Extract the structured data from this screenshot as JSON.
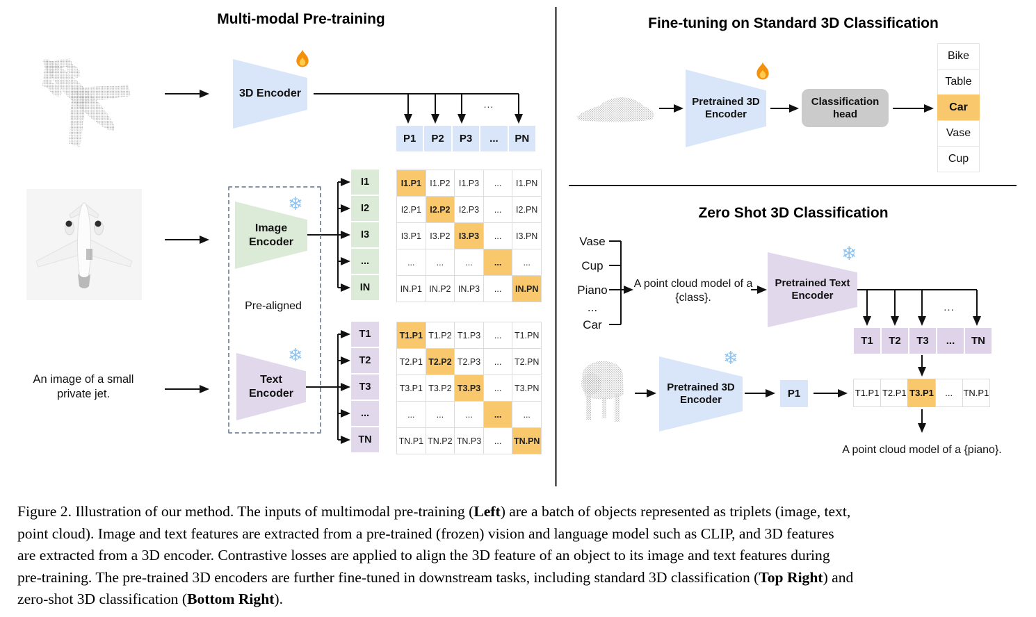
{
  "figure": {
    "ellipsis": "...",
    "left": {
      "title": "Multi-modal Pre-training",
      "encoder_3d_label": "3D Encoder",
      "image_encoder_label": "Image Encoder",
      "text_encoder_label": "Text Encoder",
      "pre_aligned_label": "Pre-aligned",
      "text_input": "An image of a small private jet.",
      "p_row": [
        "P1",
        "P2",
        "P3",
        "...",
        "PN"
      ],
      "i_labels": [
        "I1",
        "I2",
        "I3",
        "...",
        "IN"
      ],
      "i_matrix": [
        [
          "I1.P1",
          "I1.P2",
          "I1.P3",
          "...",
          "I1.PN"
        ],
        [
          "I2.P1",
          "I2.P2",
          "I2.P3",
          "...",
          "I2.PN"
        ],
        [
          "I3.P1",
          "I3.P2",
          "I3.P3",
          "...",
          "I3.PN"
        ],
        [
          "...",
          "...",
          "...",
          "...",
          "..."
        ],
        [
          "IN.P1",
          "IN.P2",
          "IN.P3",
          "...",
          "IN.PN"
        ]
      ],
      "t_labels": [
        "T1",
        "T2",
        "T3",
        "...",
        "TN"
      ],
      "t_matrix": [
        [
          "T1.P1",
          "T1.P2",
          "T1.P3",
          "...",
          "T1.PN"
        ],
        [
          "T2.P1",
          "T2.P2",
          "T2.P3",
          "...",
          "T2.PN"
        ],
        [
          "T3.P1",
          "T3.P2",
          "T3.P3",
          "...",
          "T3.PN"
        ],
        [
          "...",
          "...",
          "...",
          "...",
          "..."
        ],
        [
          "TN.P1",
          "TN.P2",
          "TN.P3",
          "...",
          "TN.PN"
        ]
      ],
      "diagonal_highlighted": true
    },
    "top_right": {
      "title": "Fine-tuning on Standard 3D Classification",
      "encoder_label": "Pretrained 3D Encoder",
      "head_label": "Classification head",
      "classes": [
        "Bike",
        "Table",
        "Car",
        "Vase",
        "Cup"
      ],
      "highlighted_class": "Car"
    },
    "bottom_right": {
      "title": "Zero Shot 3D Classification",
      "class_list": [
        "Vase",
        "Cup",
        "Piano",
        "...",
        "Car"
      ],
      "prompt": "A point cloud model of a {class}.",
      "text_encoder_label": "Pretrained Text Encoder",
      "encoder_label": "Pretrained 3D Encoder",
      "t_row": [
        "T1",
        "T2",
        "T3",
        "...",
        "TN"
      ],
      "p_box": "P1",
      "tp_row": [
        "T1.P1",
        "T2.P1",
        "T3.P1",
        "...",
        "TN.P1"
      ],
      "highlighted_tp": "T3.P1",
      "result_prompt": "A point cloud model of a {piano}."
    }
  },
  "caption": {
    "label": "Figure 2.",
    "lines": [
      [
        {
          "t": "Figure 2. Illustration of our method. The inputs of multimodal pre-training ("
        },
        {
          "t": "Left",
          "b": true
        },
        {
          "t": ") are a batch of objects represented as triplets (image, text,"
        }
      ],
      [
        {
          "t": "point cloud). Image and text features are extracted from a pre-trained (frozen) vision and language model such as CLIP, and 3D features"
        }
      ],
      [
        {
          "t": "are extracted from a 3D encoder. Contrastive losses are applied to align the 3D feature of an object to its image and text features during"
        }
      ],
      [
        {
          "t": "pre-training. The pre-trained 3D encoders are further fine-tuned in downstream tasks, including standard 3D classification ("
        },
        {
          "t": "Top Right",
          "b": true
        },
        {
          "t": ") and"
        }
      ],
      [
        {
          "t": "zero-shot 3D classification ("
        },
        {
          "t": "Bottom Right",
          "b": true
        },
        {
          "t": ")."
        }
      ]
    ]
  },
  "icons": {
    "flame": "🔥",
    "snowflake": "❄"
  },
  "colors": {
    "encoder_blue": "#d9e5f8",
    "image_green": "#dcebd8",
    "text_purple": "#e2d8ec",
    "cell_purple": "#ded3e8",
    "highlight_orange": "#f9c86c",
    "head_gray": "#cbcbcb"
  }
}
